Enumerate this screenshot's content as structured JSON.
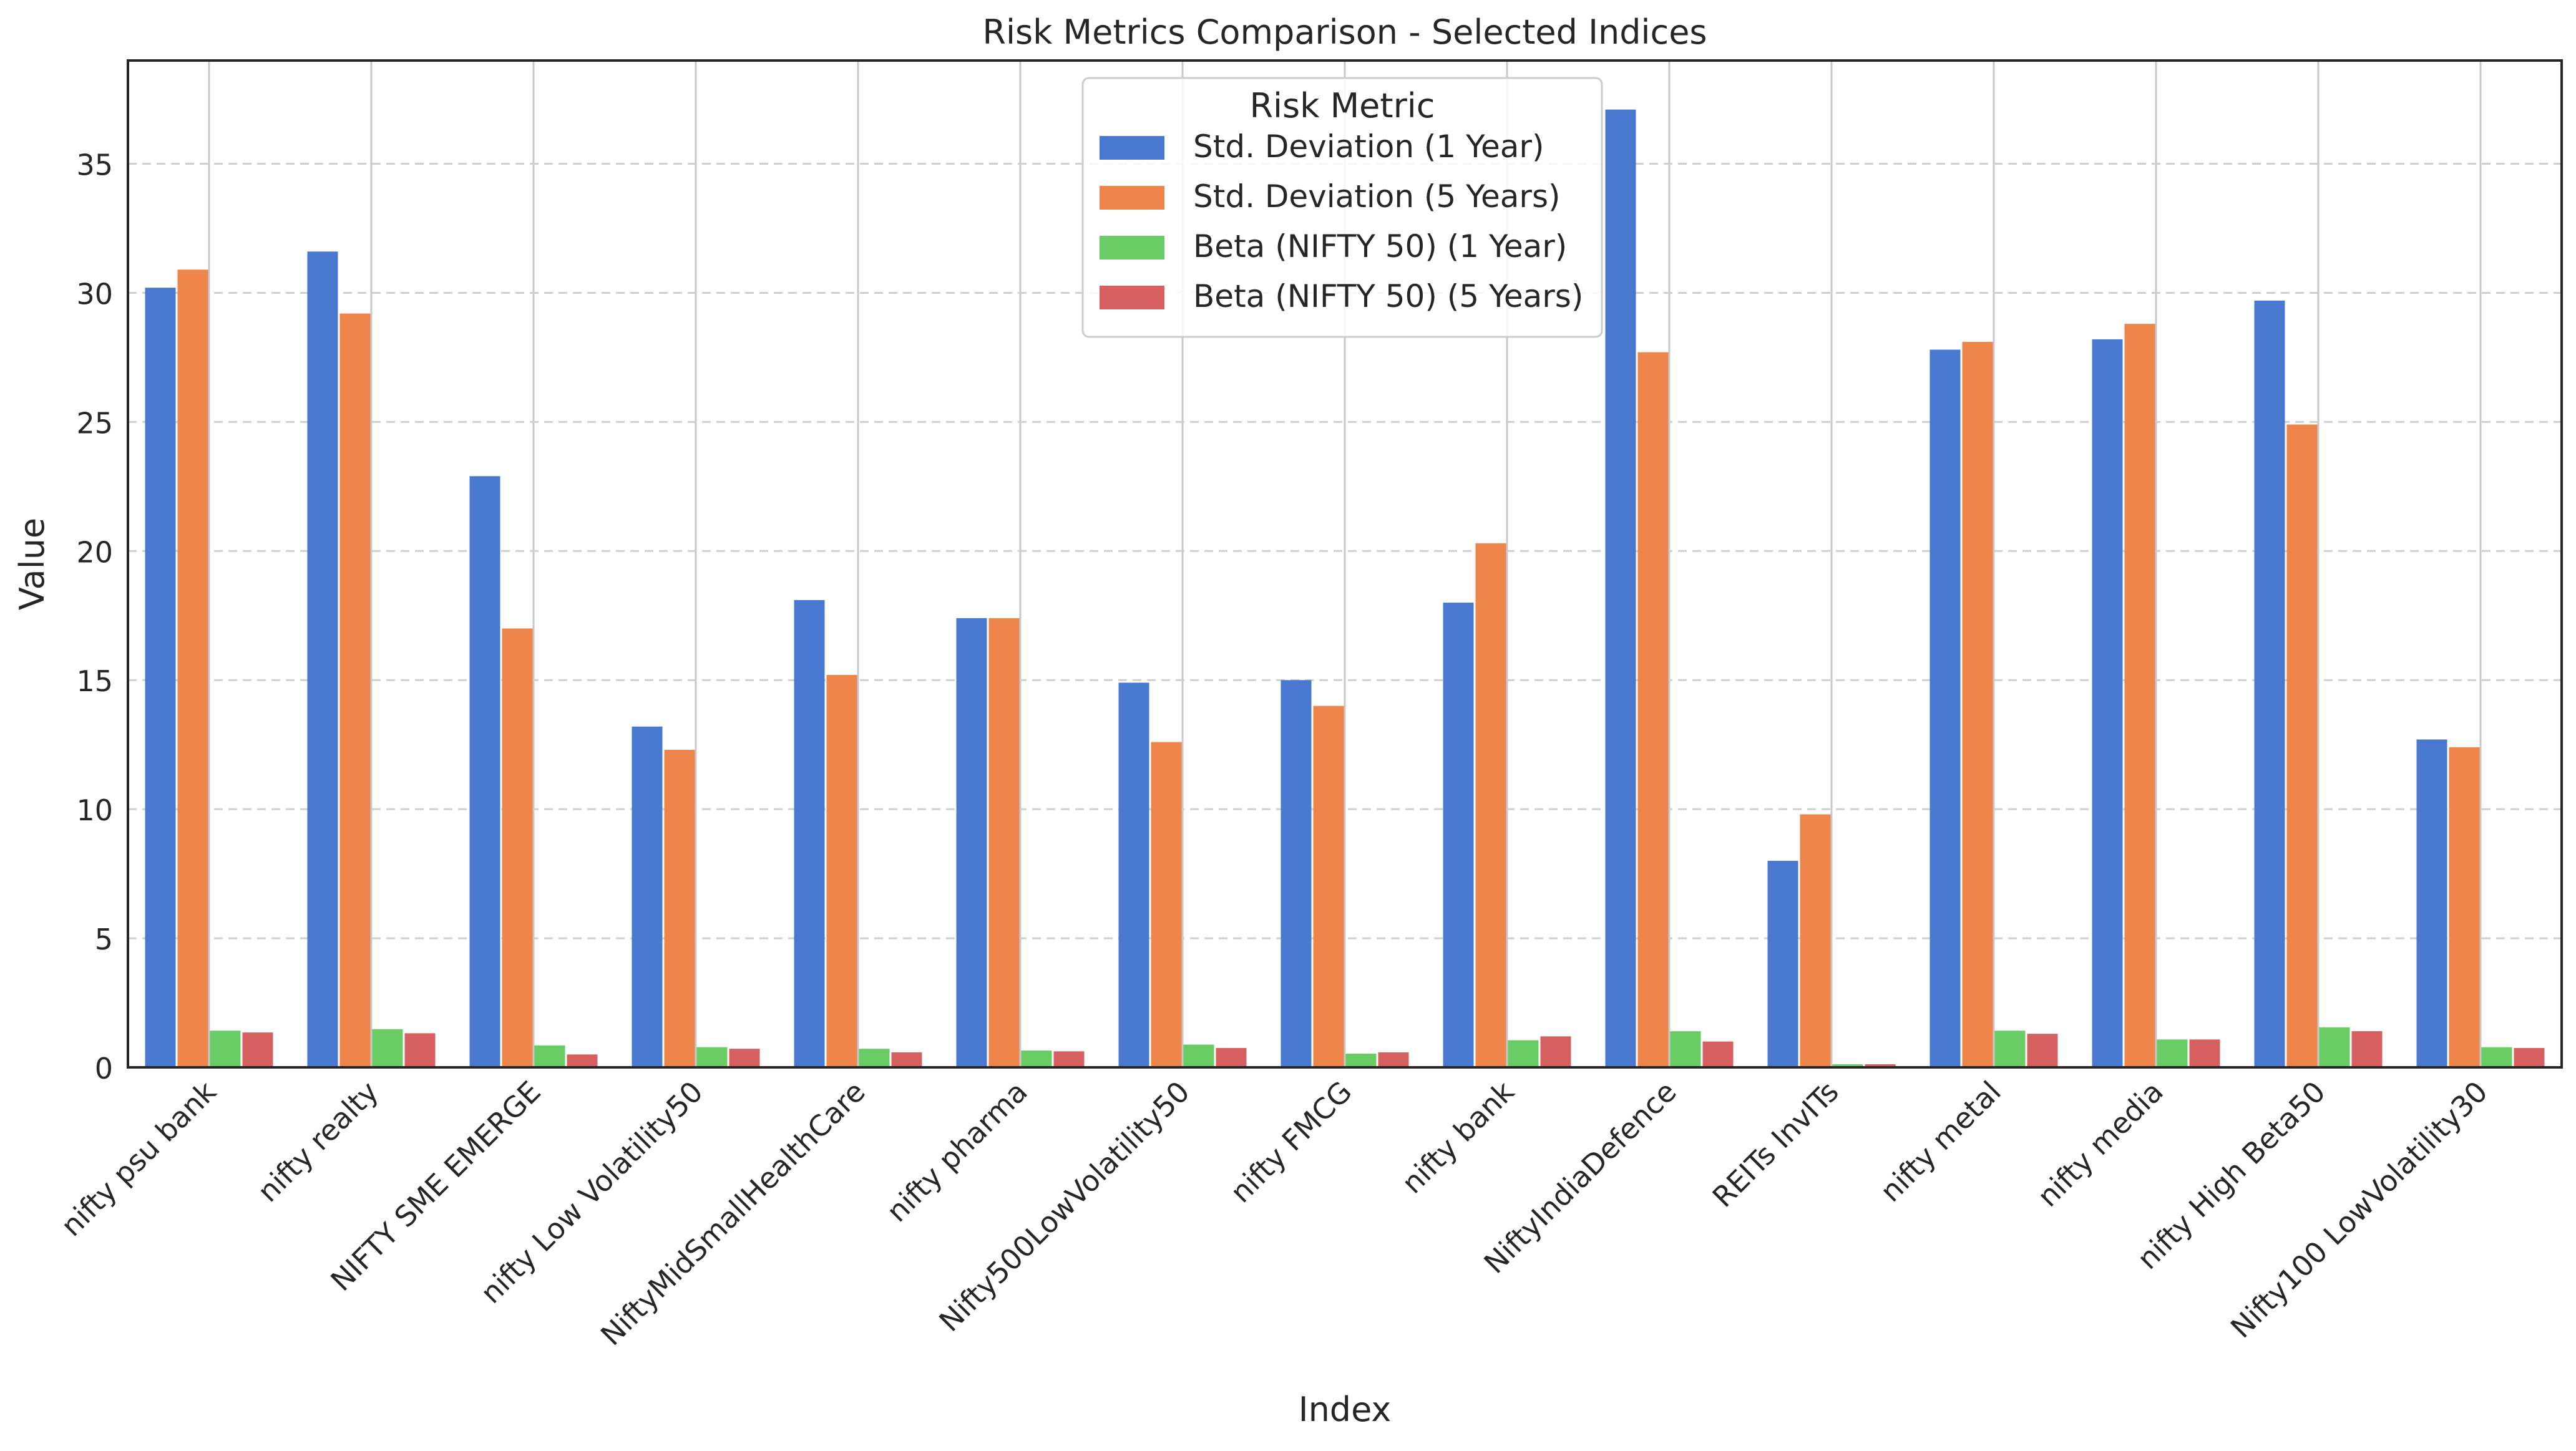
{
  "chart_data": {
    "type": "bar",
    "title": "Risk Metrics Comparison - Selected Indices",
    "xlabel": "Index",
    "ylabel": "Value",
    "ylim": [
      0,
      39
    ],
    "yticks": [
      0,
      5,
      10,
      15,
      20,
      25,
      30,
      35
    ],
    "grid": "y-dashed",
    "legend": {
      "title": "Risk Metric",
      "placement": "top-center"
    },
    "categories": [
      "nifty psu bank",
      "nifty realty",
      "NIFTY SME EMERGE",
      "nifty Low Volatility50",
      "NiftyMidSmallHealthCare",
      "nifty pharma",
      "Nifty500LowVolatility50",
      "nifty FMCG",
      "nifty bank",
      "NiftyIndiaDefence",
      "REITs InvITs",
      "nifty metal",
      "nifty media",
      "nifty High Beta50",
      "Nifty100 LowVolatility30"
    ],
    "series": [
      {
        "name": "Std. Deviation (1 Year)",
        "color": "#4878d0",
        "values": [
          30.2,
          31.6,
          22.9,
          13.2,
          18.1,
          17.4,
          14.9,
          15.0,
          18.0,
          37.1,
          8.0,
          27.8,
          28.2,
          29.7,
          12.7
        ]
      },
      {
        "name": "Std. Deviation (5 Years)",
        "color": "#ee854a",
        "values": [
          30.9,
          29.2,
          17.0,
          12.3,
          15.2,
          17.4,
          12.6,
          14.0,
          20.3,
          27.7,
          9.8,
          28.1,
          28.8,
          24.9,
          12.4
        ]
      },
      {
        "name": "Beta (NIFTY 50) (1 Year)",
        "color": "#6acc64",
        "values": [
          1.42,
          1.48,
          0.85,
          0.78,
          0.72,
          0.65,
          0.88,
          0.53,
          1.05,
          1.4,
          0.12,
          1.42,
          1.08,
          1.55,
          0.78
        ]
      },
      {
        "name": "Beta (NIFTY 50) (5 Years)",
        "color": "#d65f5f",
        "values": [
          1.35,
          1.32,
          0.5,
          0.72,
          0.58,
          0.62,
          0.75,
          0.58,
          1.2,
          1.0,
          0.12,
          1.3,
          1.08,
          1.4,
          0.75
        ]
      }
    ]
  }
}
